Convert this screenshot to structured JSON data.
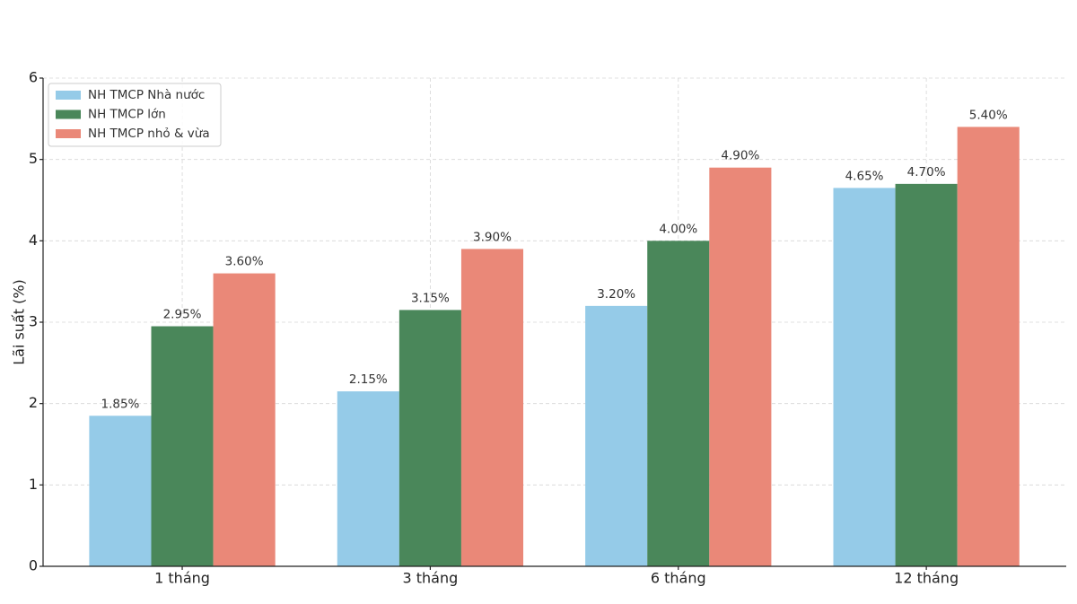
{
  "chart_data": {
    "type": "bar",
    "ylabel": "Lãi suất (%)",
    "categories": [
      "1 tháng",
      "3 tháng",
      "6 tháng",
      "12 tháng"
    ],
    "series": [
      {
        "name": "NH TMCP Nhà nước",
        "color": "#95cbe8",
        "values": [
          1.85,
          2.15,
          3.2,
          4.65
        ],
        "value_labels": [
          "1.85%",
          "2.15%",
          "3.20%",
          "4.65%"
        ]
      },
      {
        "name": "NH TMCP lớn",
        "color": "#4a875a",
        "values": [
          2.95,
          3.15,
          4.0,
          4.7
        ],
        "value_labels": [
          "2.95%",
          "3.15%",
          "4.00%",
          "4.70%"
        ]
      },
      {
        "name": "NH TMCP nhỏ & vừa",
        "color": "#ea8878",
        "values": [
          3.6,
          3.9,
          4.9,
          5.4
        ],
        "value_labels": [
          "3.60%",
          "3.90%",
          "4.90%",
          "5.40%"
        ]
      }
    ],
    "ylim": [
      0,
      6
    ],
    "yticks": [
      0,
      1,
      2,
      3,
      4,
      5,
      6
    ],
    "grid": true,
    "legend": "upper left"
  }
}
